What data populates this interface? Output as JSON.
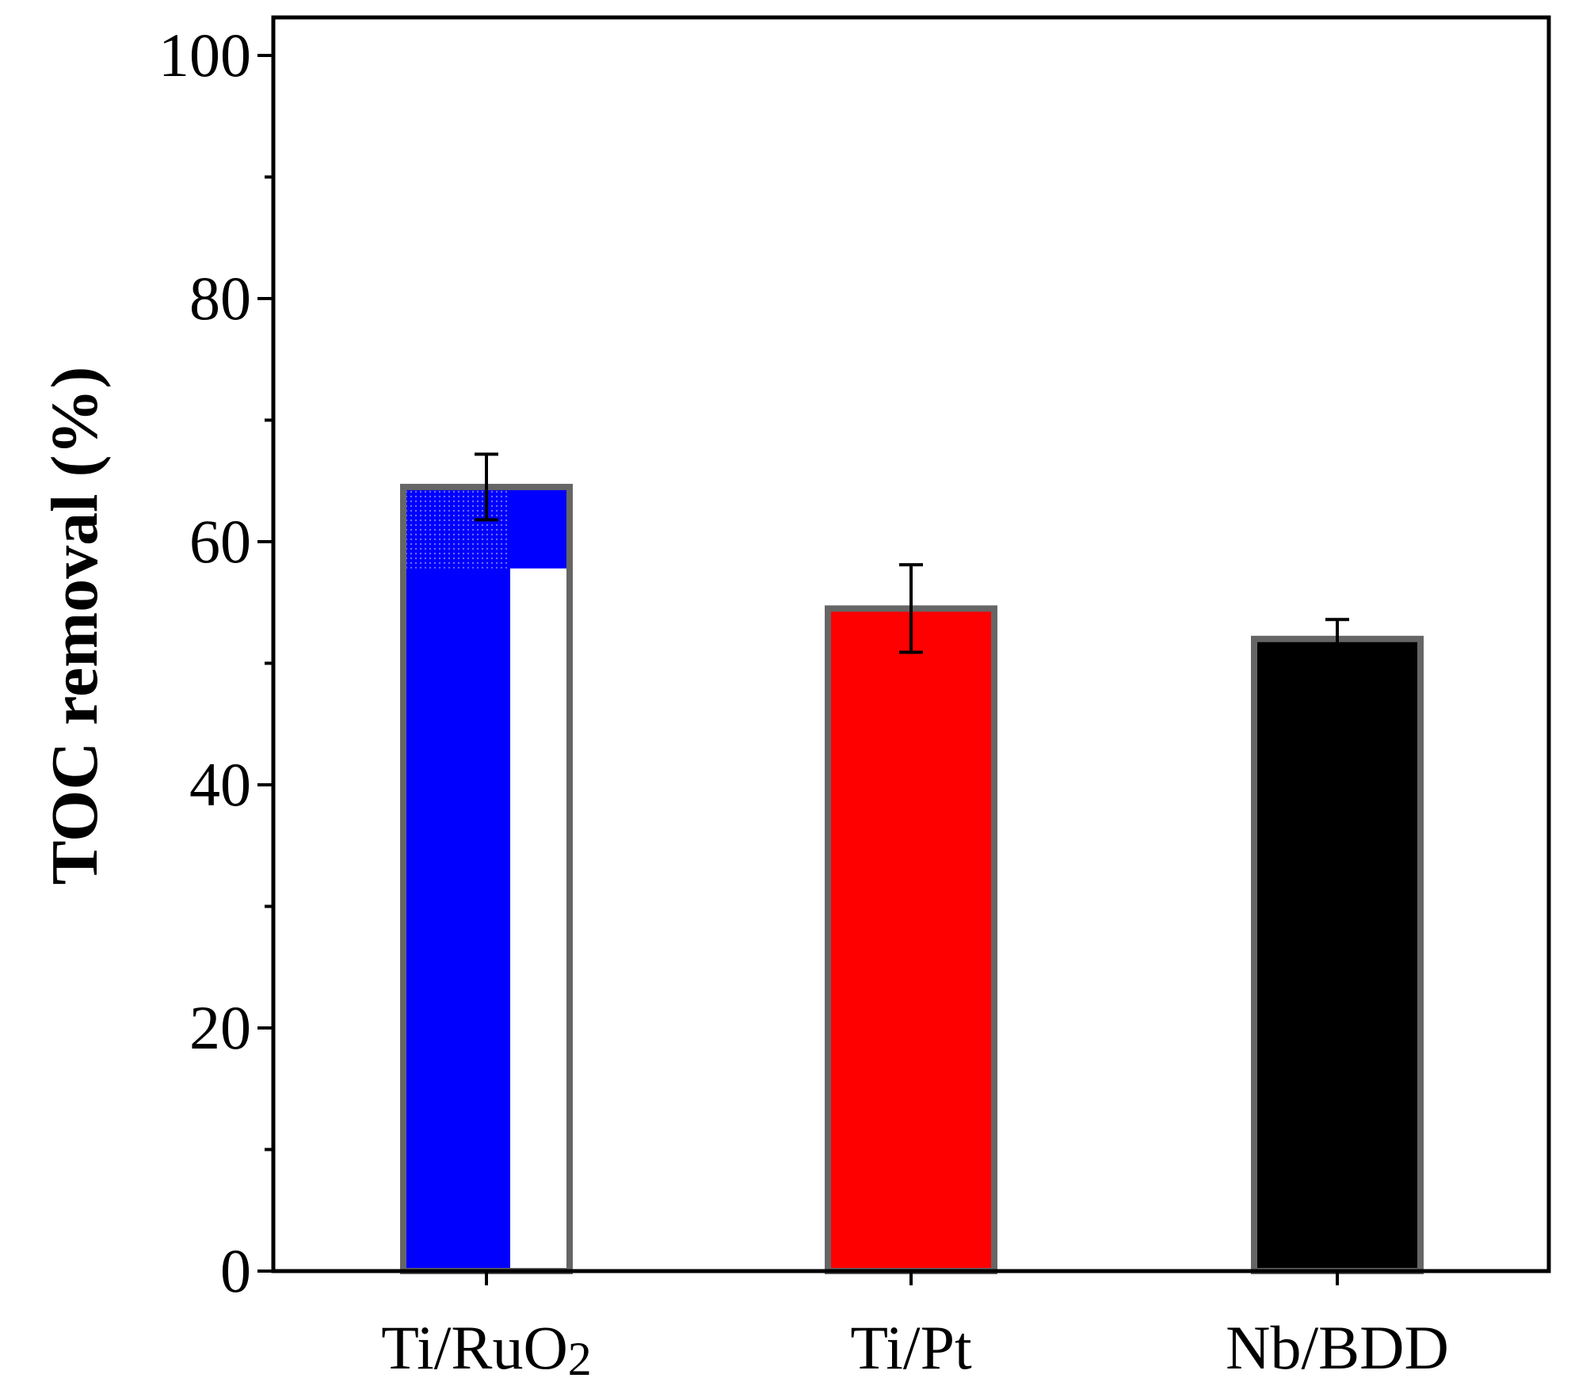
{
  "chart_data": {
    "type": "bar",
    "title": "",
    "xlabel": "",
    "ylabel": "TOC removal (%)",
    "ylim": [
      0,
      103
    ],
    "yticks": [
      "0",
      "20",
      "40",
      "60",
      "80",
      "100"
    ],
    "grid": false,
    "categories": [
      "Ti/RuO2",
      "Ti/Pt",
      "Nb/BDD"
    ],
    "category_labels": [
      {
        "main": "Ti/RuO",
        "sub": "2"
      },
      {
        "main": "Ti/Pt",
        "sub": ""
      },
      {
        "main": "Nb/BDD",
        "sub": ""
      }
    ],
    "values": [
      64.5,
      54.5,
      52.0
    ],
    "errors": [
      2.7,
      3.6,
      1.6
    ],
    "colors": [
      "#0000ff",
      "#ff0000",
      "#000000"
    ],
    "bar_edge_color": "#666666"
  }
}
